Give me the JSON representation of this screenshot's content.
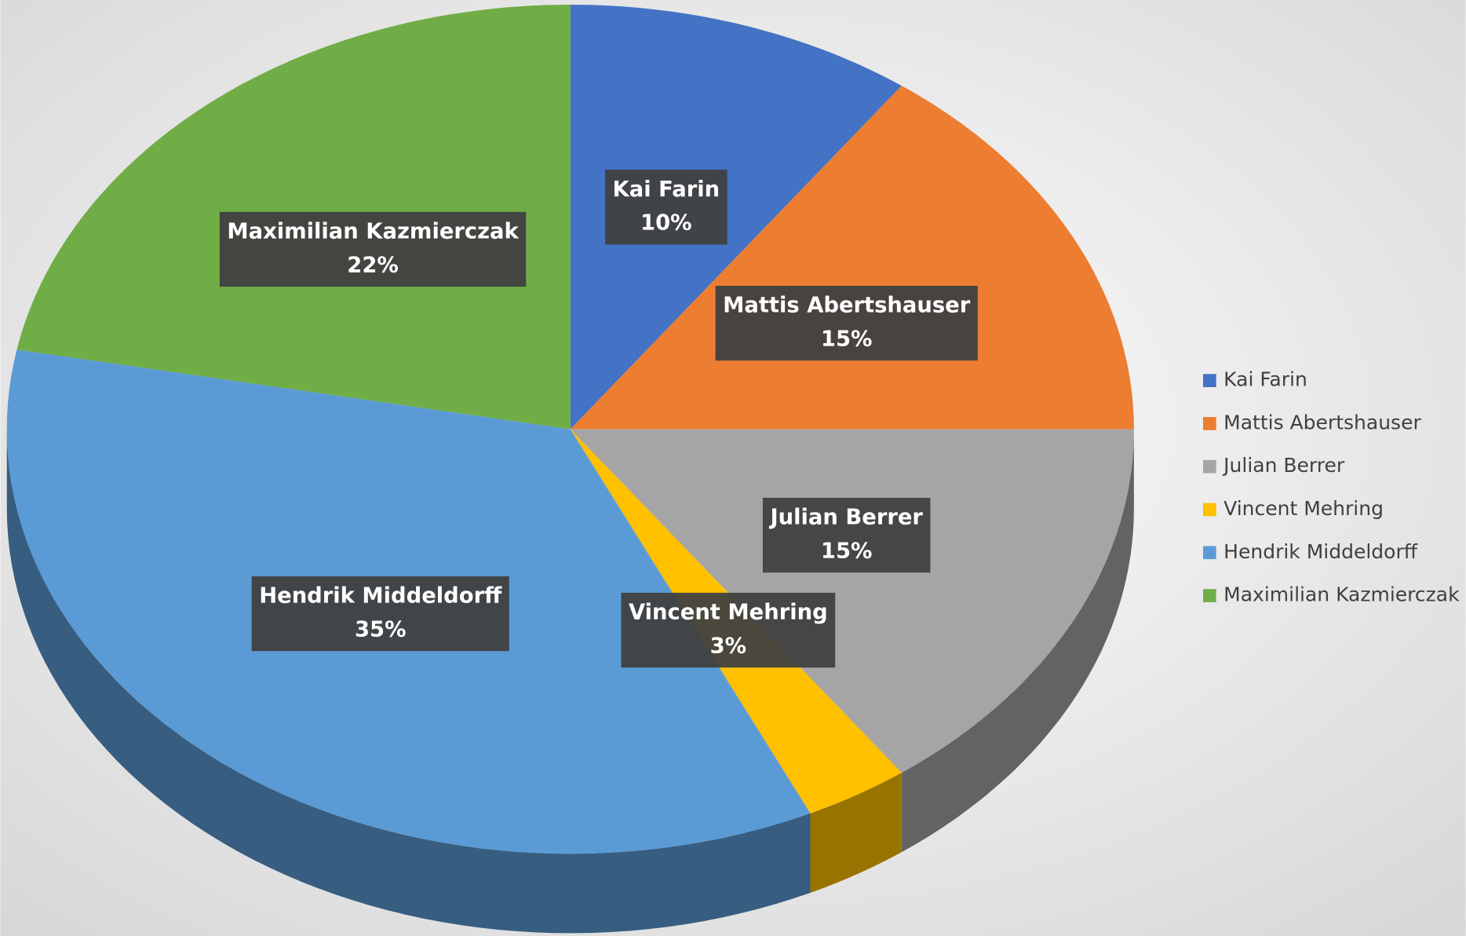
{
  "chart_data": {
    "type": "pie",
    "categories": [
      "Kai Farin",
      "Mattis Abertshauser",
      "Julian Berrer",
      "Vincent Mehring",
      "Hendrik Middeldorff",
      "Maximilian Kazmierczak"
    ],
    "values": [
      10,
      15,
      15,
      3,
      35,
      22
    ],
    "value_labels": [
      "10%",
      "15%",
      "15%",
      "3%",
      "35%",
      "22%"
    ],
    "colors": [
      "#4472c4",
      "#ed7d31",
      "#a5a5a5",
      "#ffc000",
      "#5b9bd5",
      "#70ad47"
    ],
    "legend": "right"
  }
}
